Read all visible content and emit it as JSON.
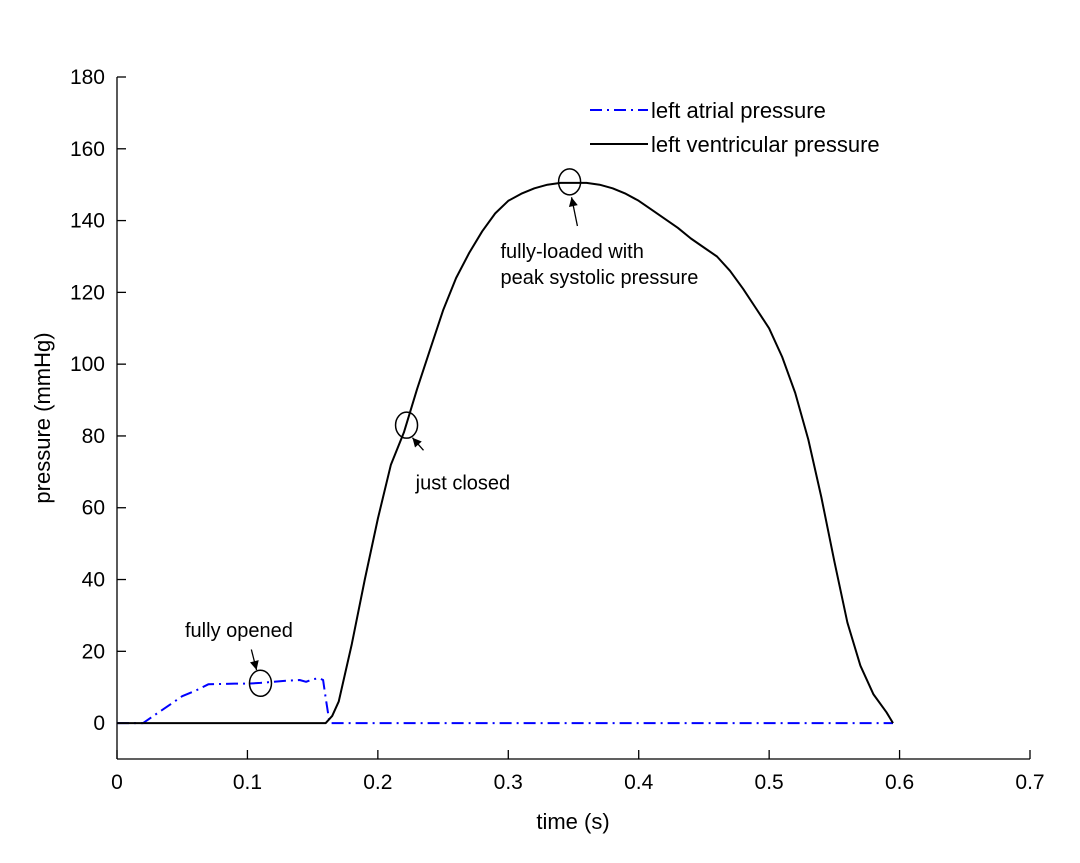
{
  "chart_data": {
    "type": "line",
    "title": "",
    "xlabel": "time (s)",
    "ylabel": "pressure (mmHg)",
    "xlim": [
      0,
      0.7
    ],
    "ylim": [
      -10,
      180
    ],
    "xticks": [
      0,
      0.1,
      0.2,
      0.3,
      0.4,
      0.5,
      0.6,
      0.7
    ],
    "xtick_labels": [
      "0",
      "0.1",
      "0.2",
      "0.3",
      "0.4",
      "0.5",
      "0.6",
      "0.7"
    ],
    "yticks": [
      0,
      20,
      40,
      60,
      80,
      100,
      120,
      140,
      160,
      180
    ],
    "ytick_labels": [
      "0",
      "20",
      "40",
      "60",
      "80",
      "100",
      "120",
      "140",
      "160",
      "180"
    ],
    "grid": false,
    "legend_position": "top-right",
    "series": [
      {
        "name": "left atrial pressure",
        "color": "#0000ff",
        "line_style": "dash-dot",
        "x": [
          0,
          0.02,
          0.03,
          0.04,
          0.05,
          0.06,
          0.07,
          0.08,
          0.09,
          0.1,
          0.11,
          0.12,
          0.13,
          0.14,
          0.145,
          0.15,
          0.155,
          0.158,
          0.16,
          0.163,
          0.17,
          0.2,
          0.3,
          0.4,
          0.5,
          0.595
        ],
        "y": [
          0,
          0,
          2.5,
          5,
          7.5,
          9,
          10.8,
          10.9,
          11,
          11,
          11.2,
          11.5,
          11.8,
          12,
          11.5,
          12.2,
          12.5,
          12,
          7,
          0,
          0,
          0,
          0,
          0,
          0,
          0
        ]
      },
      {
        "name": "left ventricular pressure",
        "color": "#000000",
        "line_style": "solid",
        "x": [
          0,
          0.16,
          0.165,
          0.17,
          0.18,
          0.19,
          0.2,
          0.21,
          0.22,
          0.23,
          0.24,
          0.25,
          0.26,
          0.27,
          0.28,
          0.29,
          0.3,
          0.31,
          0.32,
          0.33,
          0.34,
          0.35,
          0.36,
          0.37,
          0.38,
          0.39,
          0.4,
          0.41,
          0.42,
          0.43,
          0.44,
          0.45,
          0.46,
          0.47,
          0.48,
          0.49,
          0.5,
          0.51,
          0.52,
          0.53,
          0.54,
          0.55,
          0.56,
          0.57,
          0.58,
          0.59,
          0.595
        ],
        "y": [
          0,
          0,
          2,
          6,
          22,
          40,
          57,
          72,
          81,
          93,
          104,
          115,
          124,
          131,
          137,
          142,
          145.5,
          147.5,
          149,
          150,
          150.5,
          150.5,
          150.5,
          150,
          149,
          147.5,
          145.5,
          143,
          140.5,
          138,
          135,
          132.5,
          130,
          126,
          121,
          115.5,
          110,
          102,
          92,
          79,
          63,
          45,
          28,
          16,
          8,
          3,
          0
        ]
      }
    ],
    "annotations": [
      {
        "text": "fully opened",
        "x": 0.11,
        "y": 11.1
      },
      {
        "text": "just closed",
        "x": 0.222,
        "y": 83
      },
      {
        "text": "fully-loaded with\npeak systolic pressure",
        "x": 0.347,
        "y": 150.8
      }
    ]
  }
}
